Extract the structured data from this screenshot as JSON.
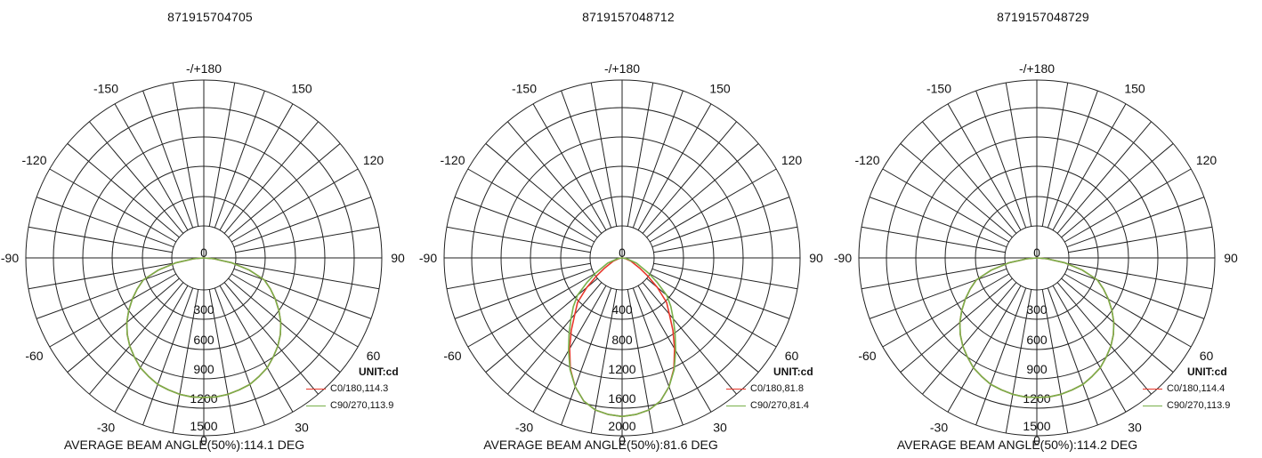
{
  "chart_data": [
    {
      "type": "polar",
      "title": "871915704705",
      "unit_label": "UNIT:cd",
      "angle_labels": [
        "-/+180",
        "150",
        "120",
        "90",
        "60",
        "30",
        "0",
        "-30",
        "-60",
        "-90",
        "-120",
        "-150"
      ],
      "angle_label_values": [
        180,
        150,
        120,
        90,
        60,
        30,
        0,
        -30,
        -60,
        -90,
        -120,
        -150
      ],
      "radial_max": 1500,
      "radial_ticks": [
        0,
        300,
        600,
        900,
        1200,
        1500
      ],
      "radial_tick_labels": [
        "0",
        "300",
        "600",
        "900",
        "1200",
        "1500"
      ],
      "beam_angle_text": "AVERAGE BEAM ANGLE(50%):114.1 DEG",
      "series": [
        {
          "name": "C0/180,114.3",
          "color": "#e8372b",
          "angles": [
            -90,
            -85,
            -80,
            -75,
            -70,
            -65,
            -60,
            -55,
            -50,
            -45,
            -40,
            -35,
            -30,
            -25,
            -20,
            -15,
            -10,
            -5,
            0,
            5,
            10,
            15,
            20,
            25,
            30,
            35,
            40,
            45,
            50,
            55,
            60,
            65,
            70,
            75,
            80,
            85,
            90
          ],
          "values": [
            0,
            50,
            140,
            230,
            330,
            420,
            510,
            600,
            690,
            770,
            840,
            900,
            960,
            1000,
            1040,
            1060,
            1080,
            1090,
            1090,
            1090,
            1080,
            1060,
            1040,
            1000,
            960,
            900,
            840,
            770,
            690,
            600,
            510,
            420,
            330,
            230,
            140,
            50,
            0
          ]
        },
        {
          "name": "C90/270,113.9",
          "color": "#78b04a",
          "angles": [
            -90,
            -85,
            -80,
            -75,
            -70,
            -65,
            -60,
            -55,
            -50,
            -45,
            -40,
            -35,
            -30,
            -25,
            -20,
            -15,
            -10,
            -5,
            0,
            5,
            10,
            15,
            20,
            25,
            30,
            35,
            40,
            45,
            50,
            55,
            60,
            65,
            70,
            75,
            80,
            85,
            90
          ],
          "values": [
            0,
            50,
            140,
            230,
            330,
            420,
            510,
            600,
            690,
            770,
            840,
            900,
            960,
            1000,
            1040,
            1060,
            1080,
            1090,
            1090,
            1090,
            1080,
            1060,
            1040,
            1000,
            960,
            900,
            840,
            770,
            690,
            600,
            510,
            420,
            330,
            230,
            140,
            50,
            0
          ]
        }
      ]
    },
    {
      "type": "polar",
      "title": "8719157048712",
      "unit_label": "UNIT:cd",
      "angle_labels": [
        "-/+180",
        "150",
        "120",
        "90",
        "60",
        "30",
        "0",
        "-30",
        "-60",
        "-90",
        "-120",
        "-150"
      ],
      "angle_label_values": [
        180,
        150,
        120,
        90,
        60,
        30,
        0,
        -30,
        -60,
        -90,
        -120,
        -150
      ],
      "radial_max": 2000,
      "radial_ticks": [
        0,
        400,
        800,
        1200,
        1600,
        2000
      ],
      "radial_tick_labels": [
        "0",
        "400",
        "800",
        "1200",
        "1600",
        "2000"
      ],
      "beam_angle_text": "AVERAGE BEAM ANGLE(50%):81.6 DEG",
      "series": [
        {
          "name": "C0/180,81.8",
          "color": "#e8372b",
          "angles": [
            -90,
            -80,
            -70,
            -60,
            -55,
            -50,
            -45,
            -40,
            -35,
            -30,
            -25,
            -20,
            -15,
            -10,
            -5,
            0,
            5,
            10,
            15,
            20,
            25,
            30,
            35,
            40,
            45,
            50,
            55,
            60,
            70,
            80,
            90
          ],
          "values": [
            0,
            20,
            60,
            130,
            200,
            300,
            420,
            560,
            760,
            980,
            1220,
            1420,
            1570,
            1660,
            1700,
            1720,
            1700,
            1660,
            1570,
            1420,
            1220,
            980,
            760,
            560,
            420,
            300,
            200,
            130,
            60,
            20,
            0
          ]
        },
        {
          "name": "C90/270,81.4",
          "color": "#78b04a",
          "angles": [
            -90,
            -80,
            -70,
            -60,
            -55,
            -50,
            -45,
            -40,
            -35,
            -30,
            -25,
            -20,
            -15,
            -10,
            -5,
            0,
            5,
            10,
            15,
            20,
            25,
            30,
            35,
            40,
            45,
            50,
            55,
            60,
            70,
            80,
            90
          ],
          "values": [
            0,
            30,
            100,
            200,
            280,
            380,
            500,
            640,
            810,
            1010,
            1230,
            1420,
            1570,
            1660,
            1700,
            1720,
            1700,
            1660,
            1570,
            1420,
            1230,
            1010,
            810,
            640,
            500,
            380,
            280,
            200,
            100,
            30,
            0
          ]
        }
      ]
    },
    {
      "type": "polar",
      "title": "8719157048729",
      "unit_label": "UNIT:cd",
      "angle_labels": [
        "-/+180",
        "150",
        "120",
        "90",
        "60",
        "30",
        "0",
        "-30",
        "-60",
        "-90",
        "-120",
        "-150"
      ],
      "angle_label_values": [
        180,
        150,
        120,
        90,
        60,
        30,
        0,
        -30,
        -60,
        -90,
        -120,
        -150
      ],
      "radial_max": 1500,
      "radial_ticks": [
        0,
        300,
        600,
        900,
        1200,
        1500
      ],
      "radial_tick_labels": [
        "0",
        "300",
        "600",
        "900",
        "1200",
        "1500"
      ],
      "beam_angle_text": "AVERAGE BEAM ANGLE(50%):114.2 DEG",
      "series": [
        {
          "name": "C0/180,114.4",
          "color": "#e8372b",
          "angles": [
            -90,
            -85,
            -80,
            -75,
            -70,
            -65,
            -60,
            -55,
            -50,
            -45,
            -40,
            -35,
            -30,
            -25,
            -20,
            -15,
            -10,
            -5,
            0,
            5,
            10,
            15,
            20,
            25,
            30,
            35,
            40,
            45,
            50,
            55,
            60,
            65,
            70,
            75,
            80,
            85,
            90
          ],
          "values": [
            0,
            50,
            140,
            230,
            330,
            420,
            510,
            600,
            690,
            770,
            840,
            900,
            960,
            1000,
            1040,
            1060,
            1080,
            1090,
            1090,
            1090,
            1080,
            1060,
            1040,
            1000,
            960,
            900,
            840,
            770,
            690,
            600,
            510,
            420,
            330,
            230,
            140,
            50,
            0
          ]
        },
        {
          "name": "C90/270,113.9",
          "color": "#78b04a",
          "angles": [
            -90,
            -85,
            -80,
            -75,
            -70,
            -65,
            -60,
            -55,
            -50,
            -45,
            -40,
            -35,
            -30,
            -25,
            -20,
            -15,
            -10,
            -5,
            0,
            5,
            10,
            15,
            20,
            25,
            30,
            35,
            40,
            45,
            50,
            55,
            60,
            65,
            70,
            75,
            80,
            85,
            90
          ],
          "values": [
            0,
            50,
            140,
            230,
            330,
            420,
            510,
            600,
            690,
            770,
            840,
            900,
            960,
            1000,
            1040,
            1060,
            1080,
            1090,
            1090,
            1090,
            1080,
            1060,
            1040,
            1000,
            960,
            900,
            840,
            770,
            690,
            600,
            510,
            420,
            330,
            230,
            140,
            50,
            0
          ]
        }
      ]
    }
  ]
}
